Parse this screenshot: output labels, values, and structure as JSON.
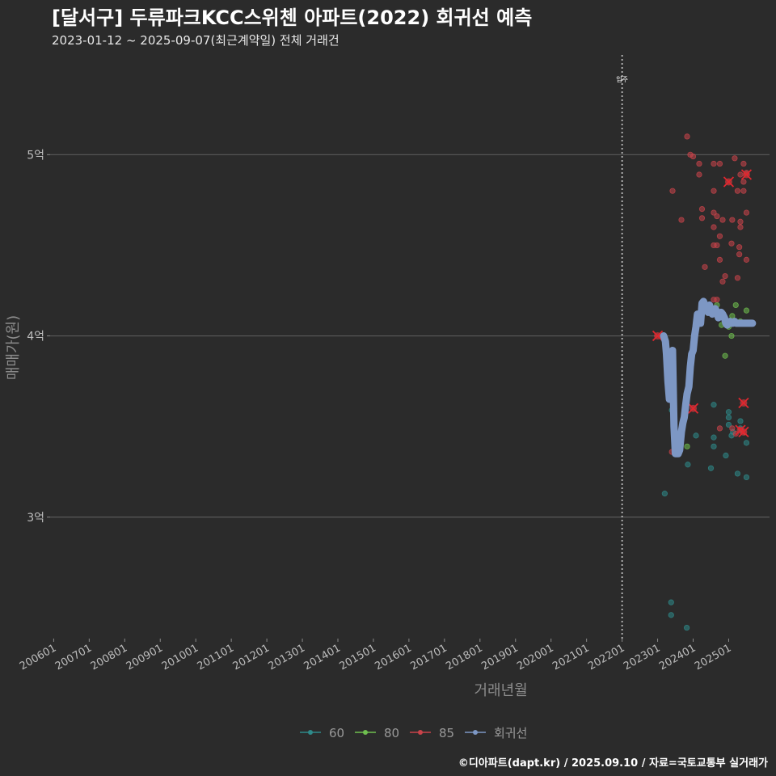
{
  "chart_data": {
    "type": "scatter",
    "title": "[달서구] 두류파크KCC스위첸 아파트(2022) 회귀선 예측",
    "subtitle": "2023-01-12 ~ 2025-09-07(최근계약일) 전체 거래건",
    "xlabel": "거래년월",
    "ylabel": "매매가(원)",
    "ylim": [
      2.33,
      5.55
    ],
    "xlim": [
      2005.9,
      2026.15
    ],
    "x_ticks": [
      {
        "label": "200601",
        "x": 2006.0
      },
      {
        "label": "200701",
        "x": 2007.0
      },
      {
        "label": "200801",
        "x": 2008.0
      },
      {
        "label": "200901",
        "x": 2009.0
      },
      {
        "label": "201001",
        "x": 2010.0
      },
      {
        "label": "201101",
        "x": 2011.0
      },
      {
        "label": "201201",
        "x": 2012.0
      },
      {
        "label": "201301",
        "x": 2013.0
      },
      {
        "label": "201401",
        "x": 2014.0
      },
      {
        "label": "201501",
        "x": 2015.0
      },
      {
        "label": "201601",
        "x": 2016.0
      },
      {
        "label": "201701",
        "x": 2017.0
      },
      {
        "label": "201801",
        "x": 2018.0
      },
      {
        "label": "201901",
        "x": 2019.0
      },
      {
        "label": "202001",
        "x": 2020.0
      },
      {
        "label": "202101",
        "x": 2021.0
      },
      {
        "label": "202201",
        "x": 2022.0
      },
      {
        "label": "202301",
        "x": 2023.0
      },
      {
        "label": "202401",
        "x": 2024.0
      },
      {
        "label": "202501",
        "x": 2025.0
      }
    ],
    "y_ticks": [
      {
        "label": "3억",
        "y": 3
      },
      {
        "label": "4억",
        "y": 4
      },
      {
        "label": "5억",
        "y": 5
      }
    ],
    "grid": true,
    "legend_position": "bottom",
    "annotation": {
      "label": "입주",
      "x": 2022.0
    },
    "series": [
      {
        "name": "60",
        "color": "#2e8a8a",
        "points": [
          [
            2023.38,
            2.53
          ],
          [
            2023.38,
            2.46
          ],
          [
            2023.82,
            2.39
          ],
          [
            2023.2,
            3.13
          ],
          [
            2023.4,
            3.59
          ],
          [
            2023.85,
            3.29
          ],
          [
            2024.08,
            3.45
          ],
          [
            2024.5,
            3.27
          ],
          [
            2024.58,
            3.39
          ],
          [
            2024.58,
            3.44
          ],
          [
            2024.58,
            3.62
          ],
          [
            2024.92,
            3.34
          ],
          [
            2025.0,
            3.51
          ],
          [
            2025.0,
            3.55
          ],
          [
            2025.0,
            3.58
          ],
          [
            2025.08,
            3.45
          ],
          [
            2025.12,
            3.47
          ],
          [
            2025.25,
            3.24
          ],
          [
            2025.33,
            3.53
          ],
          [
            2025.33,
            3.49
          ],
          [
            2025.5,
            3.41
          ],
          [
            2025.5,
            3.22
          ]
        ]
      },
      {
        "name": "80",
        "color": "#6fbf4f",
        "points": [
          [
            2023.83,
            3.39
          ],
          [
            2024.9,
            3.89
          ],
          [
            2024.8,
            4.06
          ],
          [
            2025.0,
            4.05
          ],
          [
            2025.08,
            4.0
          ],
          [
            2025.1,
            4.11
          ],
          [
            2025.2,
            4.17
          ],
          [
            2024.67,
            4.17
          ],
          [
            2025.5,
            4.14
          ],
          [
            2025.33,
            4.08
          ],
          [
            2025.45,
            4.07
          ]
        ]
      },
      {
        "name": "85",
        "color": "#c9434a",
        "points": [
          [
            2023.83,
            5.1
          ],
          [
            2023.92,
            5.0
          ],
          [
            2024.0,
            4.99
          ],
          [
            2024.17,
            4.95
          ],
          [
            2024.17,
            4.89
          ],
          [
            2024.58,
            4.95
          ],
          [
            2024.75,
            4.95
          ],
          [
            2025.17,
            4.98
          ],
          [
            2025.42,
            4.95
          ],
          [
            2025.42,
            4.85
          ],
          [
            2025.5,
            4.9
          ],
          [
            2025.33,
            4.89
          ],
          [
            2025.25,
            4.8
          ],
          [
            2024.58,
            4.8
          ],
          [
            2023.42,
            4.8
          ],
          [
            2025.42,
            4.8
          ],
          [
            2023.67,
            4.64
          ],
          [
            2024.25,
            4.7
          ],
          [
            2024.25,
            4.65
          ],
          [
            2024.58,
            4.68
          ],
          [
            2024.67,
            4.66
          ],
          [
            2024.83,
            4.64
          ],
          [
            2025.1,
            4.64
          ],
          [
            2025.33,
            4.63
          ],
          [
            2025.33,
            4.6
          ],
          [
            2025.5,
            4.68
          ],
          [
            2024.58,
            4.6
          ],
          [
            2024.58,
            4.5
          ],
          [
            2024.67,
            4.5
          ],
          [
            2024.75,
            4.55
          ],
          [
            2025.08,
            4.51
          ],
          [
            2025.3,
            4.49
          ],
          [
            2025.3,
            4.45
          ],
          [
            2025.5,
            4.42
          ],
          [
            2024.33,
            4.38
          ],
          [
            2024.75,
            4.42
          ],
          [
            2024.9,
            4.33
          ],
          [
            2024.83,
            4.3
          ],
          [
            2025.25,
            4.32
          ],
          [
            2024.58,
            4.2
          ],
          [
            2024.67,
            4.2
          ],
          [
            2023.92,
            3.79
          ],
          [
            2023.4,
            3.36
          ],
          [
            2024.75,
            3.49
          ],
          [
            2025.1,
            3.49
          ],
          [
            2025.2,
            3.46
          ]
        ]
      }
    ],
    "highlighted": [
      {
        "series": "85",
        "x": 2023.0,
        "y": 4.0
      },
      {
        "series": "85",
        "x": 2024.0,
        "y": 3.6
      },
      {
        "series": "85",
        "x": 2025.0,
        "y": 4.85
      },
      {
        "series": "85",
        "x": 2025.5,
        "y": 4.89
      },
      {
        "series": "85",
        "x": 2025.42,
        "y": 3.63
      },
      {
        "series": "85",
        "x": 2025.33,
        "y": 3.48
      },
      {
        "series": "85",
        "x": 2025.42,
        "y": 3.47
      }
    ],
    "regression": {
      "name": "회귀선",
      "color": "#7d97c4",
      "x": [
        2023.17,
        2023.22,
        2023.25,
        2023.29,
        2023.33,
        2023.37,
        2023.42,
        2023.46,
        2023.5,
        2023.54,
        2023.58,
        2023.62,
        2023.67,
        2023.71,
        2023.75,
        2023.79,
        2023.83,
        2023.88,
        2023.92,
        2023.96,
        2024.0,
        2024.04,
        2024.08,
        2024.12,
        2024.17,
        2024.21,
        2024.25,
        2024.29,
        2024.33,
        2024.37,
        2024.42,
        2024.46,
        2024.5,
        2024.54,
        2024.58,
        2024.62,
        2024.67,
        2024.71,
        2024.75,
        2024.79,
        2024.83,
        2024.88,
        2024.92,
        2024.96,
        2025.0,
        2025.04,
        2025.08,
        2025.12,
        2025.17,
        2025.21,
        2025.25,
        2025.29,
        2025.33,
        2025.37,
        2025.42,
        2025.46,
        2025.5,
        2025.54,
        2025.58,
        2025.62,
        2025.67
      ],
      "y": [
        4.0,
        3.97,
        3.9,
        3.75,
        3.65,
        3.88,
        3.92,
        3.5,
        3.35,
        3.35,
        3.35,
        3.37,
        3.47,
        3.52,
        3.55,
        3.62,
        3.68,
        3.72,
        3.83,
        3.9,
        3.92,
        4.0,
        4.05,
        4.12,
        4.1,
        4.07,
        4.18,
        4.19,
        4.17,
        4.15,
        4.13,
        4.17,
        4.14,
        4.12,
        4.14,
        4.15,
        4.13,
        4.1,
        4.12,
        4.13,
        4.12,
        4.1,
        4.07,
        4.06,
        4.07,
        4.08,
        4.07,
        4.07,
        4.08,
        4.07,
        4.07,
        4.07,
        4.07,
        4.07,
        4.07,
        4.07,
        4.07,
        4.07,
        4.07,
        4.07,
        4.07
      ]
    },
    "legend": [
      "60",
      "80",
      "85",
      "회귀선"
    ],
    "footer": "©디아파트(dapt.kr) / 2025.09.10 / 자료=국토교통부 실거래가"
  }
}
